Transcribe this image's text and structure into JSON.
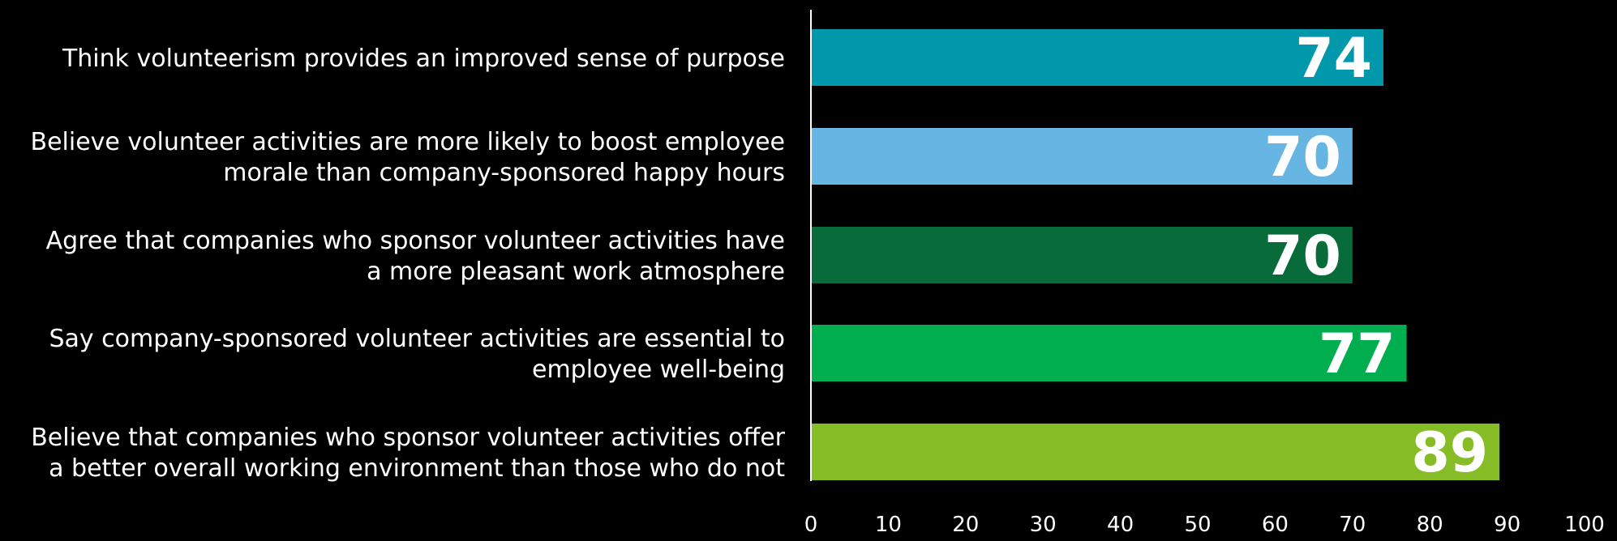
{
  "chart_data": {
    "type": "bar",
    "orientation": "horizontal",
    "categories": [
      "Think volunteerism provides an improved sense of purpose",
      "Believe volunteer activities are more likely to boost employee morale than company-sponsored happy hours",
      "Agree that companies who sponsor volunteer activities have a more pleasant work atmosphere",
      "Say company-sponsored volunteer activities are essential to employee well-being",
      "Believe that companies who sponsor volunteer activities offer a better overall working environment than those who do not"
    ],
    "category_lines": [
      [
        "Think volunteerism provides an improved sense of purpose"
      ],
      [
        "Believe volunteer activities are more likely to boost employee",
        "morale than company-sponsored happy hours"
      ],
      [
        "Agree that companies who sponsor volunteer activities have",
        "a more pleasant work atmosphere"
      ],
      [
        "Say company-sponsored volunteer activities are essential to",
        "employee well-being"
      ],
      [
        "Believe that companies who sponsor volunteer activities offer",
        "a better overall working environment than those who do not"
      ]
    ],
    "values": [
      74,
      70,
      70,
      77,
      89
    ],
    "value_labels": [
      "74",
      "70",
      "70",
      "77",
      "89"
    ],
    "colors": [
      "#0098AA",
      "#66B5E3",
      "#086B3A",
      "#00AE4F",
      "#86BC25"
    ],
    "xlim": [
      0,
      100
    ],
    "xticks": [
      "0",
      "10",
      "20",
      "30",
      "40",
      "50",
      "60",
      "70",
      "80",
      "90",
      "100"
    ],
    "title": "",
    "xlabel": "",
    "ylabel": "",
    "grid": false,
    "legend": "none"
  }
}
